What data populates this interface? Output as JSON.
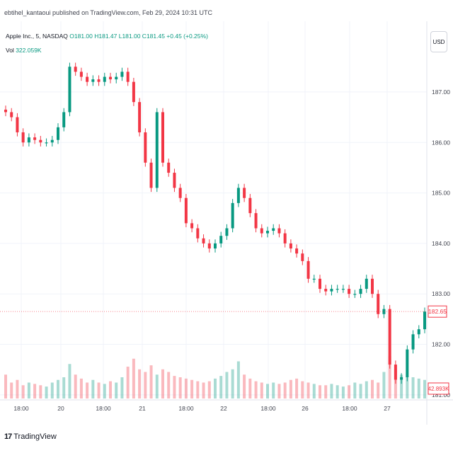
{
  "header": {
    "publisher_line": "ebtihel_kantaoui published on TradingView.com, Feb 29, 2024 10:31 UTC"
  },
  "symbol": {
    "name": "Apple Inc., 5, NASDAQ",
    "ohlc_text": "O181.00 H181.47 L181.00 C181.45 +0.45 (+0.25%)"
  },
  "volume": {
    "label": "Vol",
    "value": "322.059K"
  },
  "currency": "USD",
  "brand": {
    "logo": "17",
    "name": "TradingView"
  },
  "colors": {
    "up": "#089981",
    "down": "#f23645",
    "grid": "#f0f3fa"
  },
  "price_label": "182.65",
  "volume_label": "42.893K",
  "chart_data": {
    "type": "candlestick",
    "title": "",
    "ylim": [
      180.9,
      187.7
    ],
    "y_ticks": [
      "187.00",
      "186.00",
      "185.00",
      "184.00",
      "183.00",
      "182.00",
      "181.00"
    ],
    "x_ticks": [
      "18:00",
      "20",
      "18:00",
      "21",
      "18:00",
      "22",
      "18:00",
      "26",
      "18:00",
      "27"
    ],
    "grid": true,
    "close": [
      186.6,
      186.5,
      186.2,
      186.0,
      186.1,
      186.05,
      186.0,
      186.0,
      186.05,
      186.3,
      186.6,
      187.5,
      187.4,
      187.3,
      187.2,
      187.25,
      187.2,
      187.3,
      187.25,
      187.3,
      187.4,
      187.2,
      186.8,
      186.2,
      185.6,
      185.1,
      186.6,
      185.6,
      185.4,
      185.1,
      184.9,
      184.4,
      184.3,
      184.1,
      184.0,
      183.9,
      184.0,
      184.15,
      184.3,
      184.8,
      185.1,
      184.9,
      184.6,
      184.3,
      184.2,
      184.25,
      184.3,
      184.2,
      184.0,
      183.9,
      183.8,
      183.65,
      183.3,
      183.3,
      183.1,
      183.05,
      183.1,
      183.1,
      183.1,
      183.0,
      183.0,
      183.1,
      183.3,
      183.0,
      182.6,
      182.7,
      181.6,
      181.3,
      181.35,
      181.9,
      182.2,
      182.3,
      182.65
    ],
    "volume": [
      18,
      12,
      14,
      10,
      12,
      11,
      10,
      9,
      12,
      14,
      16,
      26,
      18,
      15,
      12,
      14,
      12,
      11,
      13,
      12,
      16,
      24,
      30,
      22,
      20,
      25,
      18,
      22,
      20,
      17,
      16,
      15,
      14,
      13,
      12,
      13,
      15,
      17,
      20,
      22,
      28,
      18,
      15,
      13,
      12,
      11,
      12,
      11,
      12,
      14,
      15,
      13,
      12,
      11,
      10,
      10,
      11,
      10,
      9,
      10,
      12,
      11,
      13,
      14,
      12,
      20,
      32,
      22,
      18,
      17,
      16,
      15,
      14
    ]
  }
}
